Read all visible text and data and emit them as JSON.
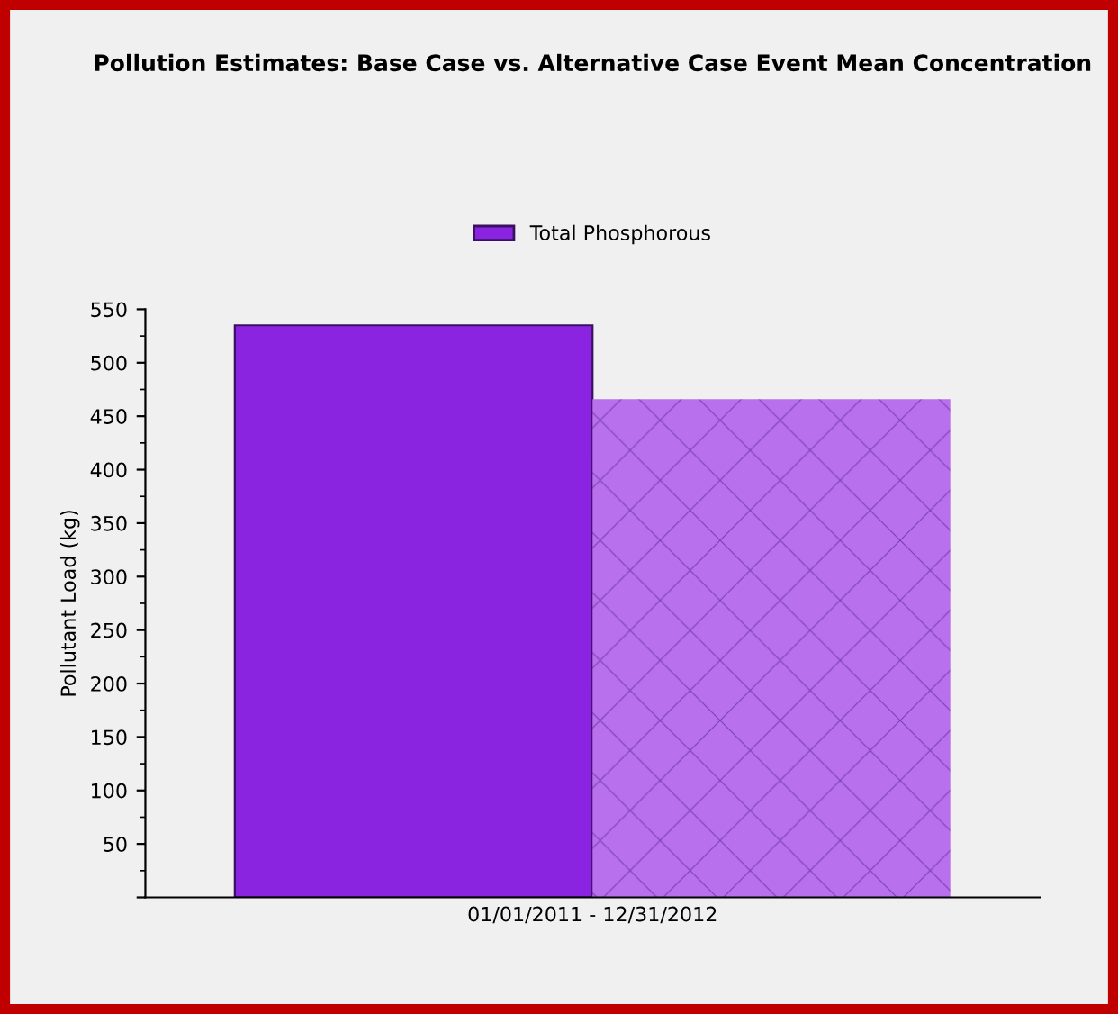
{
  "chart_data": {
    "type": "bar",
    "title": "Pollution Estimates: Base Case vs. Alternative Case Event Mean Concentration",
    "ylabel": "Pollutant Load (kg)",
    "categories": [
      "01/01/2011 - 12/31/2012"
    ],
    "series": [
      {
        "name": "Total Phosphorous",
        "color": "#8a24e0",
        "values": [
          535
        ]
      },
      {
        "color": "#b870ec",
        "values": [
          466
        ]
      }
    ],
    "ylim": [
      0,
      550
    ],
    "yticks": [
      {
        "value": 0,
        "label": null
      },
      50,
      100,
      150,
      200,
      250,
      300,
      350,
      400,
      450,
      500,
      550
    ],
    "grid": false,
    "legend": "top"
  }
}
